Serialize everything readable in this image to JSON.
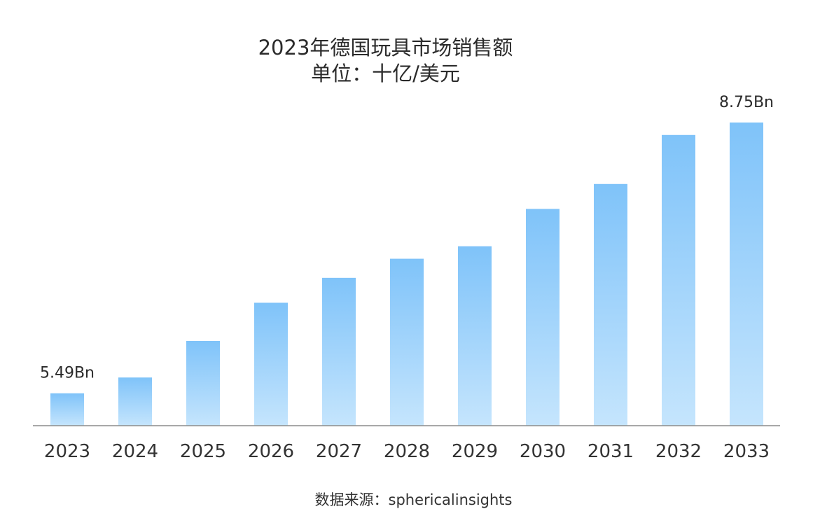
{
  "chart_data": {
    "type": "bar",
    "title": "2023年德国玩具市场销售额",
    "subtitle": "单位：十亿/美元",
    "xlabel": "",
    "ylabel": "",
    "categories": [
      "2023",
      "2024",
      "2025",
      "2026",
      "2027",
      "2028",
      "2029",
      "2030",
      "2031",
      "2032",
      "2033"
    ],
    "values": [
      5.49,
      5.68,
      6.12,
      6.58,
      6.88,
      7.11,
      7.26,
      7.71,
      8.01,
      8.6,
      8.75
    ],
    "data_labels": [
      {
        "index": 0,
        "text": "5.49Bn"
      },
      {
        "index": 10,
        "text": "8.75Bn"
      }
    ],
    "ylim": [
      5.1,
      8.75
    ],
    "grid": false,
    "legend": "none",
    "colors": {
      "bar_top": "#7fc3f9",
      "bar_bottom": "#c5e5fd",
      "axis": "#8c8c8c",
      "tick_text": "#333333",
      "label_text": "#2b2b2b"
    }
  },
  "source": "数据来源：sphericalinsights"
}
